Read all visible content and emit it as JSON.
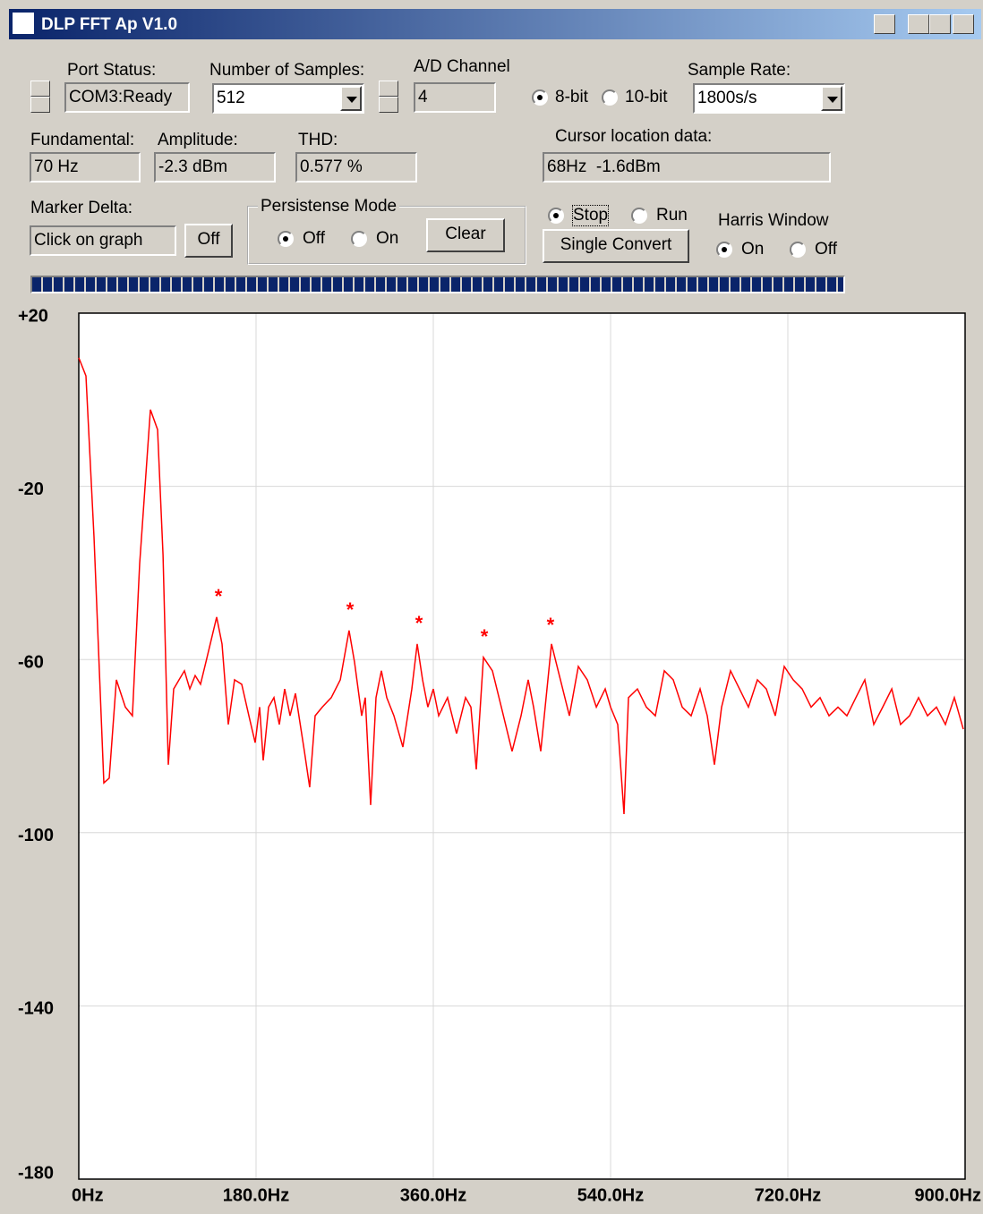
{
  "window": {
    "title": "DLP FFT Ap V1.0"
  },
  "controls": {
    "port_status": {
      "label": "Port Status:",
      "value": "COM3:Ready"
    },
    "num_samples": {
      "label": "Number of Samples:",
      "value": "512"
    },
    "ad_channel": {
      "label": "A/D Channel",
      "value": "4"
    },
    "bit_depth": {
      "options": [
        "8-bit",
        "10-bit"
      ],
      "selected": 0
    },
    "sample_rate": {
      "label": "Sample Rate:",
      "value": "1800s/s"
    },
    "fundamental": {
      "label": "Fundamental:",
      "value": "70 Hz"
    },
    "amplitude": {
      "label": "Amplitude:",
      "value": "-2.3 dBm"
    },
    "thd": {
      "label": "THD:",
      "value": "0.577 %"
    },
    "cursor": {
      "label": "Cursor location data:",
      "value": "68Hz  -1.6dBm"
    },
    "marker_delta": {
      "label": "Marker Delta:",
      "value": "Click on graph",
      "button": "Off"
    },
    "persistence": {
      "label": "Persistense Mode",
      "options": [
        "Off",
        "On"
      ],
      "selected": 0,
      "button": "Clear"
    },
    "run_mode": {
      "options": [
        "Stop",
        "Run"
      ],
      "selected": 0,
      "button": "Single Convert"
    },
    "harris": {
      "label": "Harris Window",
      "options": [
        "On",
        "Off"
      ],
      "selected": 0
    }
  },
  "chart_data": {
    "type": "line",
    "x": [
      0,
      7.3,
      15.5,
      25.5,
      30.9,
      38.2,
      47.3,
      54.5,
      61.8,
      72.7,
      80,
      85.5,
      90.9,
      96.4,
      101.8,
      107.3,
      112.7,
      118.2,
      123.6,
      129.1,
      140,
      145.5,
      151.8,
      158.2,
      165.5,
      172.7,
      179.1,
      183.6,
      187.3,
      192.7,
      198.2,
      203.6,
      209.1,
      214.5,
      220,
      229.1,
      234.5,
      240,
      247.3,
      256.4,
      265.5,
      274.5,
      280,
      287.3,
      290.9,
      296.4,
      301.8,
      307.3,
      312.7,
      320,
      329.1,
      338.2,
      343.6,
      349.1,
      354.5,
      360,
      365.5,
      374.5,
      383.6,
      392.7,
      398.2,
      403.6,
      410.9,
      420,
      429.1,
      440,
      449.1,
      456.4,
      461.8,
      469.1,
      480,
      489.1,
      498.2,
      507.3,
      516.4,
      525.5,
      534.5,
      540,
      547.3,
      553.6,
      558.2,
      567.3,
      576.4,
      585.5,
      594.5,
      603.6,
      612.7,
      621.8,
      630.9,
      638.2,
      645.5,
      652.7,
      661.8,
      670.9,
      680,
      689.1,
      698.2,
      707.3,
      716.4,
      725.5,
      734.5,
      743.6,
      752.7,
      761.8,
      770.9,
      780,
      789.1,
      798.2,
      807.3,
      816.4,
      825.5,
      834.5,
      843.6,
      852.7,
      861.8,
      870.9,
      880,
      889.1,
      898.2
    ],
    "series": [
      {
        "color": "#ff0000",
        "values": [
          9.7,
          5.5,
          -31.7,
          -88.5,
          -87.4,
          -64.7,
          -71.0,
          -73.0,
          -37.9,
          -2.3,
          -6.9,
          -35.8,
          -84.3,
          -66.8,
          -64.7,
          -62.6,
          -66.8,
          -63.7,
          -65.7,
          -60.6,
          -50.2,
          -56.4,
          -75.0,
          -64.7,
          -65.7,
          -73.0,
          -79.2,
          -71.0,
          -83.3,
          -71.0,
          -68.8,
          -75.0,
          -66.8,
          -73.0,
          -67.8,
          -81.2,
          -89.5,
          -73.0,
          -71.0,
          -68.8,
          -64.7,
          -53.3,
          -60.6,
          -73.0,
          -68.8,
          -93.6,
          -68.8,
          -62.6,
          -68.8,
          -73.0,
          -80.2,
          -66.8,
          -56.4,
          -64.7,
          -71.0,
          -66.8,
          -73.0,
          -68.8,
          -77.1,
          -68.8,
          -71.0,
          -85.4,
          -59.5,
          -62.6,
          -71.0,
          -81.2,
          -73.0,
          -64.7,
          -71.0,
          -81.2,
          -56.4,
          -64.7,
          -73.0,
          -61.6,
          -64.7,
          -71.0,
          -66.8,
          -71.0,
          -75.0,
          -95.7,
          -68.8,
          -66.8,
          -71.0,
          -73.0,
          -62.6,
          -64.7,
          -71.0,
          -73.0,
          -66.8,
          -73.0,
          -84.3,
          -71.0,
          -62.6,
          -66.8,
          -71.0,
          -64.7,
          -66.8,
          -73.0,
          -61.6,
          -64.7,
          -66.8,
          -71.0,
          -68.8,
          -73.0,
          -71.0,
          -73.0,
          -68.8,
          -64.7,
          -75.0,
          -71.0,
          -66.8,
          -75.0,
          -73.0,
          -68.8,
          -73.0,
          -71.0,
          -75.0,
          -68.8,
          -76.1
        ]
      }
    ],
    "xlim": [
      0,
      900
    ],
    "ylim": [
      -180,
      20
    ],
    "xticks": [
      {
        "value": 0,
        "label": "0Hz"
      },
      {
        "value": 180,
        "label": "180.0Hz"
      },
      {
        "value": 360,
        "label": "360.0Hz"
      },
      {
        "value": 540,
        "label": "540.0Hz"
      },
      {
        "value": 720,
        "label": "720.0Hz"
      },
      {
        "value": 900,
        "label": "900.0Hz"
      }
    ],
    "yticks": [
      {
        "value": 20,
        "label": "+20"
      },
      -20,
      -60,
      -100,
      -140,
      -180
    ],
    "grid": true,
    "annotations": [
      {
        "text": "*",
        "x": 141.8,
        "y": -44.5
      },
      {
        "text": "*",
        "x": 275.5,
        "y": -47.6
      },
      {
        "text": "*",
        "x": 345.5,
        "y": -50.7
      },
      {
        "text": "*",
        "x": 411.8,
        "y": -53.8
      },
      {
        "text": "*",
        "x": 479,
        "y": -51.1
      }
    ]
  }
}
